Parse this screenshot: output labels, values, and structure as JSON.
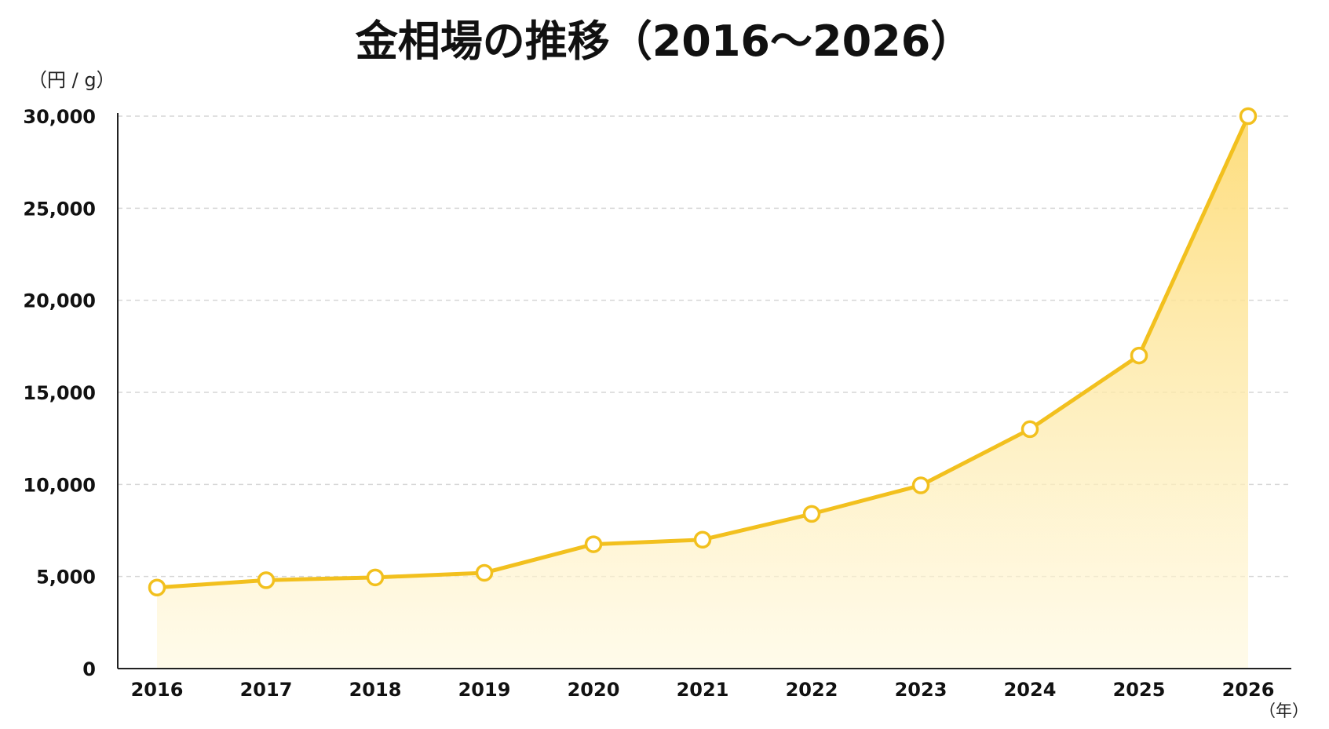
{
  "chart_data": {
    "type": "area",
    "title": "金相場の推移（2016〜2026）",
    "ylabel": "（円 / g）",
    "xlabel": "（年）",
    "x": [
      "2016",
      "2017",
      "2018",
      "2019",
      "2020",
      "2021",
      "2022",
      "2023",
      "2024",
      "2025",
      "2026"
    ],
    "series": [
      {
        "values": [
          4400,
          4800,
          4950,
          5200,
          6750,
          7000,
          8400,
          9950,
          13000,
          17000,
          30000
        ]
      }
    ],
    "ylim": [
      0,
      30000
    ],
    "yticks": [
      0,
      5000,
      10000,
      15000,
      20000,
      25000,
      30000
    ],
    "ytick_labels": [
      "0",
      "5,000",
      "10,000",
      "15,000",
      "20,000",
      "25,000",
      "30,000"
    ],
    "grid": true,
    "colors": {
      "line": "#F2C01E",
      "fill_top": "#FDDB75",
      "fill_bottom": "#FFF8DC"
    }
  }
}
